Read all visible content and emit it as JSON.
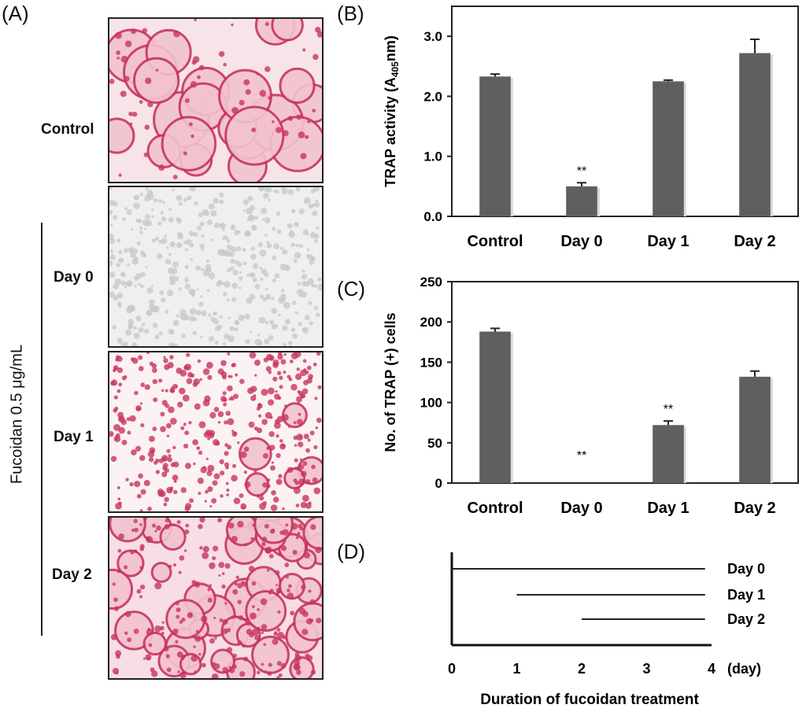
{
  "panels": {
    "a": "(A)",
    "b": "(B)",
    "c": "(C)",
    "d": "(D)"
  },
  "micrographs": {
    "rows": [
      "Control",
      "Day 0",
      "Day 1",
      "Day 2"
    ],
    "group_label": "Fucoidan 0.5 μg/mL"
  },
  "colors": {
    "bar": "#5f5f5f",
    "stain_dark": "#c8345e",
    "stain_light": "#f2c3cf",
    "cell_grey": "#c9c9c9"
  },
  "chart_data": [
    {
      "type": "bar",
      "panel": "B",
      "categories": [
        "Control",
        "Day 0",
        "Day 1",
        "Day 2"
      ],
      "values": [
        2.33,
        0.5,
        2.25,
        2.72
      ],
      "errors": [
        0.04,
        0.06,
        0.02,
        0.23
      ],
      "annotations": [
        "",
        "**",
        "",
        ""
      ],
      "ylabel": "TRAP activity (A",
      "ylabel_sub": "405",
      "ylabel_tail": "nm)",
      "ylim": [
        0,
        3.5
      ],
      "yticks": [
        "0.0",
        "1.0",
        "2.0",
        "3.0"
      ],
      "ytick_values": [
        0,
        1,
        2,
        3
      ]
    },
    {
      "type": "bar",
      "panel": "C",
      "categories": [
        "Control",
        "Day 0",
        "Day 1",
        "Day 2"
      ],
      "values": [
        188,
        0,
        72,
        132
      ],
      "errors": [
        4,
        0,
        5,
        7
      ],
      "annotations": [
        "",
        "**",
        "**",
        ""
      ],
      "ylabel": "No. of TRAP (+) cells",
      "ylim": [
        0,
        250
      ],
      "yticks": [
        "0",
        "50",
        "100",
        "150",
        "200",
        "250"
      ],
      "ytick_values": [
        0,
        50,
        100,
        150,
        200,
        250
      ]
    },
    {
      "type": "timeline",
      "panel": "D",
      "series": [
        {
          "name": "Day 0",
          "start": 0,
          "end": 3.9
        },
        {
          "name": "Day 1",
          "start": 1,
          "end": 3.9
        },
        {
          "name": "Day 2",
          "start": 2,
          "end": 3.9
        }
      ],
      "xticks": [
        "0",
        "1",
        "2",
        "3",
        "4"
      ],
      "xtick_values": [
        0,
        1,
        2,
        3,
        4
      ],
      "xunit": "(day)",
      "xlabel": "Duration of fucoidan treatment",
      "xlim": [
        0,
        4
      ]
    }
  ]
}
